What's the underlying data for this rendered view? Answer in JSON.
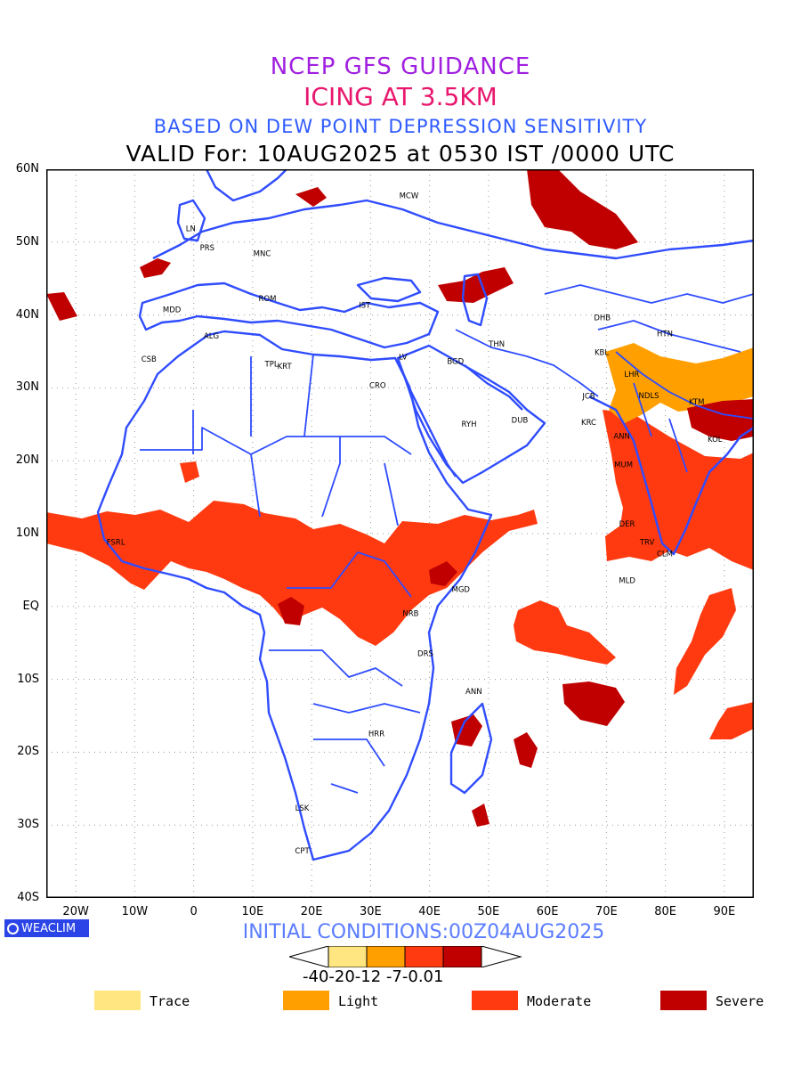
{
  "titles": {
    "line1": "NCEP GFS GUIDANCE",
    "line2": "ICING AT 3.5KM",
    "line3": "BASED ON DEW POINT DEPRESSION SENSITIVITY",
    "line4": "VALID For: 10AUG2025 at 0530 IST /0000 UTC"
  },
  "axes": {
    "lat_labels": [
      "60N",
      "50N",
      "40N",
      "30N",
      "20N",
      "10N",
      "EQ",
      "10S",
      "20S",
      "30S",
      "40S"
    ],
    "lon_labels": [
      "20W",
      "10W",
      "0",
      "10E",
      "20E",
      "30E",
      "40E",
      "50E",
      "60E",
      "70E",
      "80E",
      "90E"
    ],
    "lat_range": [
      -40,
      60
    ],
    "lon_range": [
      -25,
      95
    ]
  },
  "stations": [
    {
      "code": "MCW",
      "lon": 36.5,
      "lat": 56
    },
    {
      "code": "LN",
      "lon": -0.5,
      "lat": 51.5
    },
    {
      "code": "PRS",
      "lon": 2.3,
      "lat": 48.9
    },
    {
      "code": "MNC",
      "lon": 11.6,
      "lat": 48.1
    },
    {
      "code": "MDD",
      "lon": -3.7,
      "lat": 40.4
    },
    {
      "code": "ROM",
      "lon": 12.5,
      "lat": 41.9
    },
    {
      "code": "IST",
      "lon": 29,
      "lat": 41
    },
    {
      "code": "ALG",
      "lon": 3,
      "lat": 36.8
    },
    {
      "code": "CSB",
      "lon": -7.6,
      "lat": 33.6
    },
    {
      "code": "TPL",
      "lon": 13.2,
      "lat": 32.9
    },
    {
      "code": "KRT",
      "lon": 15.4,
      "lat": 32.6
    },
    {
      "code": "LV",
      "lon": 35.5,
      "lat": 33.9
    },
    {
      "code": "CRO",
      "lon": 31.2,
      "lat": 30
    },
    {
      "code": "BGD",
      "lon": 44.4,
      "lat": 33.3
    },
    {
      "code": "THN",
      "lon": 51.4,
      "lat": 35.7
    },
    {
      "code": "RYH",
      "lon": 46.7,
      "lat": 24.7
    },
    {
      "code": "DUB",
      "lon": 55.3,
      "lat": 25.2
    },
    {
      "code": "DHB",
      "lon": 69.3,
      "lat": 39.3
    },
    {
      "code": "KBL",
      "lon": 69.2,
      "lat": 34.5
    },
    {
      "code": "HTN",
      "lon": 79.9,
      "lat": 37.1
    },
    {
      "code": "LHR",
      "lon": 74.3,
      "lat": 31.5
    },
    {
      "code": "JCB",
      "lon": 67,
      "lat": 28.5
    },
    {
      "code": "NDLS",
      "lon": 77.2,
      "lat": 28.6
    },
    {
      "code": "KTM",
      "lon": 85.3,
      "lat": 27.7
    },
    {
      "code": "KRC",
      "lon": 67,
      "lat": 24.9
    },
    {
      "code": "ANN",
      "lon": 72.6,
      "lat": 23
    },
    {
      "code": "KOL",
      "lon": 88.4,
      "lat": 22.6
    },
    {
      "code": "MUM",
      "lon": 72.9,
      "lat": 19.1
    },
    {
      "code": "DER",
      "lon": 73.5,
      "lat": 11
    },
    {
      "code": "TRV",
      "lon": 76.9,
      "lat": 8.5
    },
    {
      "code": "CLM",
      "lon": 79.9,
      "lat": 6.9
    },
    {
      "code": "MLD",
      "lon": 73.5,
      "lat": 3.2
    },
    {
      "code": "FSRL",
      "lon": -13.2,
      "lat": 8.5
    },
    {
      "code": "MGD",
      "lon": 45.3,
      "lat": 2
    },
    {
      "code": "NRB",
      "lon": 36.8,
      "lat": -1.3
    },
    {
      "code": "DRS",
      "lon": 39.3,
      "lat": -6.8
    },
    {
      "code": "ANN",
      "lon": 47.5,
      "lat": -12
    },
    {
      "code": "HRR",
      "lon": 31,
      "lat": -17.8
    },
    {
      "code": "LSK",
      "lon": 18.4,
      "lat": -28
    },
    {
      "code": "CPT",
      "lon": 18.4,
      "lat": -33.9
    }
  ],
  "icing_colors": {
    "trace": "#ffe680",
    "light": "#ffa000",
    "moderate": "#ff3a10",
    "severe": "#c00000",
    "coast": "#2f4cff"
  },
  "colorbar": {
    "ticks": "-40-20-12 -7-0.01"
  },
  "legend": [
    {
      "label": "Trace",
      "color": "#ffe680"
    },
    {
      "label": "Light",
      "color": "#ffa000"
    },
    {
      "label": "Moderate",
      "color": "#ff3a10"
    },
    {
      "label": "Severe",
      "color": "#c00000"
    }
  ],
  "footer": {
    "initial": "INITIAL CONDITIONS:00Z04AUG2025",
    "logo": "WEACLIM"
  }
}
